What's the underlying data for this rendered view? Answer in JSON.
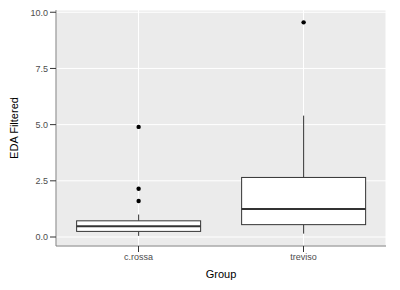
{
  "chart_data": {
    "type": "box",
    "x_label": "Group",
    "y_label": "EDA Filtered",
    "categories": [
      "c.rossa",
      "treviso"
    ],
    "stats": [
      {
        "whisker_low": 0.05,
        "q1": 0.25,
        "median": 0.48,
        "q3": 0.72,
        "whisker_high": 1.0,
        "outliers": [
          1.6,
          2.15,
          4.9
        ]
      },
      {
        "whisker_low": 0.15,
        "q1": 0.55,
        "median": 1.25,
        "q3": 2.65,
        "whisker_high": 5.4,
        "outliers": [
          9.55
        ]
      }
    ],
    "ylim": [
      -0.4,
      10.1
    ],
    "yticks": [
      {
        "value": 0,
        "label": "0.0"
      },
      {
        "value": 2.5,
        "label": "2.5"
      },
      {
        "value": 5,
        "label": "5.0"
      },
      {
        "value": 7.5,
        "label": "7.5"
      },
      {
        "value": 10,
        "label": "10.0"
      }
    ],
    "grid": true,
    "color": "#333333"
  }
}
